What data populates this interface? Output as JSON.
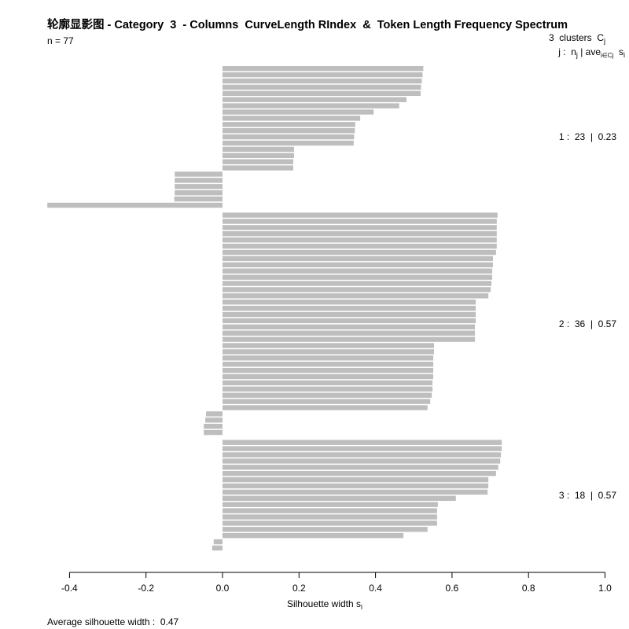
{
  "chart_data": {
    "type": "bar",
    "orientation": "horizontal",
    "title": "轮廓显影图 - Category  3  - Columns  CurveLength RIndex  &  Token Length Frequency Spectrum",
    "n_label": "n = 77",
    "xlabel": {
      "text": "Silhouette width s",
      "sub": "i"
    },
    "xlim": [
      -0.46,
      1.0
    ],
    "xticks": [
      -0.4,
      -0.2,
      0.0,
      0.2,
      0.4,
      0.6,
      0.8,
      1.0
    ],
    "xtick_labels": [
      "-0.4",
      "-0.2",
      "0.0",
      "0.2",
      "0.4",
      "0.6",
      "0.8",
      "1.0"
    ],
    "grid": false,
    "legend_position": "right",
    "legend_header": {
      "line1": [
        {
          "text": "3  clusters  C"
        },
        {
          "sub": "j"
        }
      ],
      "line2": [
        {
          "text": "j :  n"
        },
        {
          "sub": "j"
        },
        {
          "text": " | ave"
        },
        {
          "sub": "i∈Cj"
        },
        {
          "text": "  s"
        },
        {
          "sub": "i"
        }
      ]
    },
    "bar_color": "#bebebe",
    "series": [
      {
        "cluster": 1,
        "size": 23,
        "avg_width": 0.23,
        "label": "1 :  23  |  0.23",
        "values": [
          0.525,
          0.523,
          0.521,
          0.519,
          0.518,
          0.481,
          0.462,
          0.395,
          0.36,
          0.347,
          0.346,
          0.344,
          0.343,
          0.187,
          0.187,
          0.185,
          0.185,
          -0.125,
          -0.125,
          -0.125,
          -0.125,
          -0.126,
          -0.458
        ]
      },
      {
        "cluster": 2,
        "size": 36,
        "avg_width": 0.57,
        "label": "2 :  36  |  0.57",
        "values": [
          0.719,
          0.717,
          0.717,
          0.717,
          0.717,
          0.717,
          0.715,
          0.707,
          0.707,
          0.705,
          0.705,
          0.703,
          0.701,
          0.695,
          0.662,
          0.662,
          0.662,
          0.662,
          0.66,
          0.66,
          0.66,
          0.553,
          0.553,
          0.551,
          0.551,
          0.551,
          0.551,
          0.549,
          0.549,
          0.547,
          0.543,
          0.536,
          -0.043,
          -0.045,
          -0.049,
          -0.049
        ]
      },
      {
        "cluster": 3,
        "size": 18,
        "avg_width": 0.57,
        "label": "3 :  18  |  0.57",
        "values": [
          0.73,
          0.73,
          0.728,
          0.726,
          0.721,
          0.715,
          0.695,
          0.695,
          0.693,
          0.61,
          0.563,
          0.561,
          0.561,
          0.561,
          0.536,
          0.473,
          -0.023,
          -0.027
        ]
      }
    ],
    "average_label": "Average silhouette width :  0.47",
    "average_width": 0.47
  }
}
